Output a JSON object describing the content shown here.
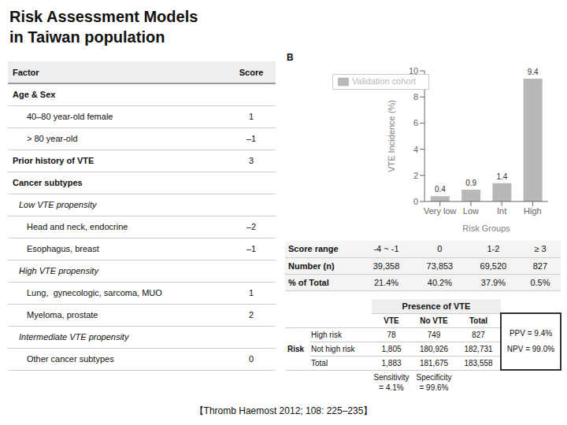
{
  "chart_data": [
    {
      "type": "table",
      "columns": [
        "Factor",
        "Score"
      ],
      "rows": [
        [
          "Age & Sex",
          null
        ],
        [
          "40–80 year-old female",
          "1"
        ],
        [
          "> 80 year-old",
          "–1"
        ],
        [
          "Prior history of VTE",
          "3"
        ],
        [
          "Cancer subtypes",
          null
        ],
        [
          "Low VTE propensity",
          null
        ],
        [
          "Head and neck, endocrine",
          "–2"
        ],
        [
          "Esophagus, breast",
          "–1"
        ],
        [
          "High VTE propensity",
          null
        ],
        [
          "Lung,  gynecologic, sarcoma, MUO",
          "1"
        ],
        [
          "Myeloma, prostate",
          "2"
        ],
        [
          "Intermediate VTE propensity",
          null
        ],
        [
          "Other cancer subtypes",
          "0"
        ]
      ]
    },
    {
      "type": "bar",
      "title": "Risk Assessment Models",
      "subtitle": "in Taiwan population",
      "categories": [
        "Very low",
        "Low",
        "Int",
        "High"
      ],
      "series": [
        {
          "name": "Validation cohort",
          "color": "#b8b8b8",
          "values": [
            0.4,
            0.9,
            1.4,
            9.4
          ]
        }
      ],
      "xlabel": "Risk Groups",
      "ylabel": "VTE Incidence (%)",
      "ylim": [
        0,
        10
      ],
      "yticks": [
        0,
        2,
        4,
        6,
        8,
        10
      ],
      "grid": false,
      "legend": "upper left",
      "data_labels": true,
      "annotations": [
        "B",
        "【Thromb Haemost 2012; 108: 225–235】"
      ]
    },
    {
      "type": "table",
      "rows": [
        [
          "Score range",
          "-4 ~ -1",
          "0",
          "1-2",
          "≥ 3"
        ],
        [
          "Number (n)",
          "39,358",
          "73,853",
          "69,520",
          "827"
        ],
        [
          "% of Total",
          "21.4%",
          "40.2%",
          "37.9%",
          "0.5%"
        ]
      ]
    },
    {
      "type": "table",
      "title": "Presence of VTE",
      "row_label": "Risk",
      "columns": [
        "VTE",
        "No VTE",
        "Total"
      ],
      "rows": [
        [
          "High risk",
          "78",
          "749",
          "827"
        ],
        [
          "Not high risk",
          "1,805",
          "180,926",
          "182,731"
        ],
        [
          "Total",
          "1,883",
          "181,675",
          "183,558"
        ]
      ],
      "annotations": [
        "Sensitivity\n= 4.1%",
        "Specificity\n= 99.6%",
        "PPV = 9.4%",
        "NPV = 99.0%"
      ]
    }
  ]
}
